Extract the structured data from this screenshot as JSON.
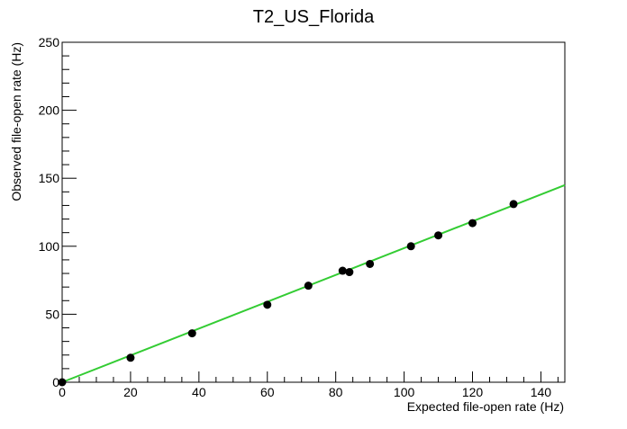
{
  "chart_data": {
    "type": "scatter",
    "title": "T2_US_Florida",
    "xlabel": "Expected file-open rate (Hz)",
    "ylabel": "Observed file-open rate (Hz)",
    "xlim": [
      0,
      147
    ],
    "ylim": [
      0,
      250
    ],
    "x_ticks": [
      0,
      20,
      40,
      60,
      80,
      100,
      120,
      140
    ],
    "y_ticks": [
      0,
      50,
      100,
      150,
      200,
      250
    ],
    "grid": false,
    "series": [
      {
        "kind": "points",
        "color": "#000000",
        "points": [
          {
            "x": 0,
            "y": 0
          },
          {
            "x": 20,
            "y": 18
          },
          {
            "x": 38,
            "y": 36
          },
          {
            "x": 60,
            "y": 57
          },
          {
            "x": 72,
            "y": 71
          },
          {
            "x": 82,
            "y": 82
          },
          {
            "x": 84,
            "y": 81
          },
          {
            "x": 90,
            "y": 87
          },
          {
            "x": 102,
            "y": 100
          },
          {
            "x": 110,
            "y": 108
          },
          {
            "x": 120,
            "y": 117
          },
          {
            "x": 132,
            "y": 131
          }
        ]
      },
      {
        "kind": "fit-line",
        "color": "#33cc33",
        "x": [
          0,
          147
        ],
        "y": [
          0,
          145
        ]
      }
    ]
  }
}
